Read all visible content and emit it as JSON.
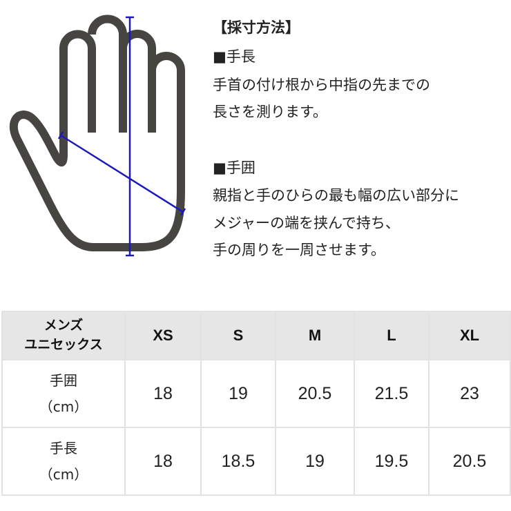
{
  "instructions": {
    "title": "【採寸方法】",
    "hand_length": {
      "heading": "■手長",
      "lines": [
        "手首の付け根から中指の先までの",
        "長さを測ります。"
      ]
    },
    "hand_circumference": {
      "heading": "■手囲",
      "lines": [
        "親指と手のひらの最も幅の広い部分に",
        "メジャーの端を挟んで持ち、",
        "手の周りを一周させます。"
      ]
    }
  },
  "diagram": {
    "outline_color": "#474542",
    "measure_line_color": "#1a1aba"
  },
  "size_table": {
    "corner_label": [
      "メンズ",
      "ユニセックス"
    ],
    "sizes": [
      "XS",
      "S",
      "M",
      "L",
      "XL"
    ],
    "rows": [
      {
        "label": "手囲",
        "unit": "（cm）",
        "values": [
          "18",
          "19",
          "20.5",
          "21.5",
          "23"
        ]
      },
      {
        "label": "手長",
        "unit": "（cm）",
        "values": [
          "18",
          "18.5",
          "19",
          "19.5",
          "20.5"
        ]
      }
    ],
    "header_bg": "#e6e6e6"
  }
}
